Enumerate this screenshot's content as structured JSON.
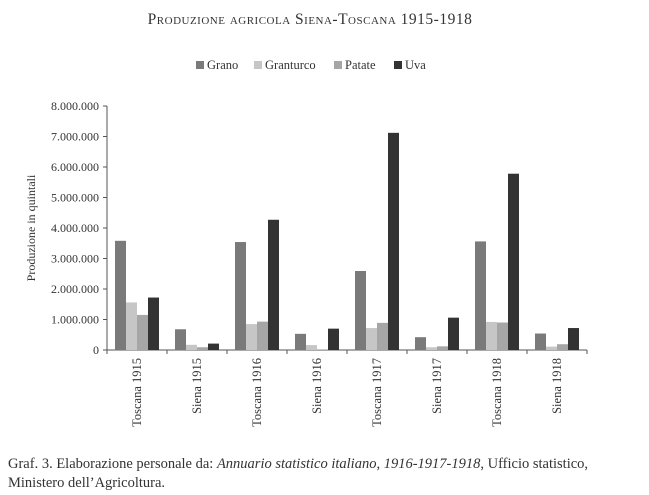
{
  "chart_data": {
    "type": "bar",
    "title": "Produzione agricola Siena-Toscana 1915-1918",
    "ylabel": "Produzione in quintali",
    "xlabel": "",
    "ylim": [
      0,
      8000000
    ],
    "yticks": [
      0,
      1000000,
      2000000,
      3000000,
      4000000,
      5000000,
      6000000,
      7000000,
      8000000
    ],
    "ytick_labels": [
      "0",
      "1.000.000",
      "2.000.000",
      "3.000.000",
      "4.000.000",
      "5.000.000",
      "6.000.000",
      "7.000.000",
      "8.000.000"
    ],
    "categories": [
      "Toscana 1915",
      "Siena 1915",
      "Toscana 1916",
      "Siena 1916",
      "Toscana 1917",
      "Siena 1917",
      "Toscana 1918",
      "Siena 1918"
    ],
    "legend_position": "top-center",
    "grid": false,
    "series": [
      {
        "name": "Grano",
        "color": "#7a7a7a",
        "values": [
          3580000,
          680000,
          3540000,
          530000,
          2590000,
          420000,
          3560000,
          540000
        ]
      },
      {
        "name": "Granturco",
        "color": "#c6c6c6",
        "values": [
          1560000,
          170000,
          850000,
          160000,
          720000,
          90000,
          920000,
          110000
        ]
      },
      {
        "name": "Patate",
        "color": "#a6a6a6",
        "values": [
          1150000,
          90000,
          930000,
          20000,
          890000,
          120000,
          900000,
          190000
        ]
      },
      {
        "name": "Uva",
        "color": "#333333",
        "values": [
          1720000,
          210000,
          4270000,
          700000,
          7120000,
          1060000,
          5780000,
          720000
        ]
      }
    ]
  },
  "caption": {
    "prefix": "Graf. 3. Elaborazione personale da: ",
    "source_italic": "Annuario statistico italiano, 1916-1917-1918",
    "suffix": ", Ufficio statistico, Ministero dell’Agricoltura."
  }
}
